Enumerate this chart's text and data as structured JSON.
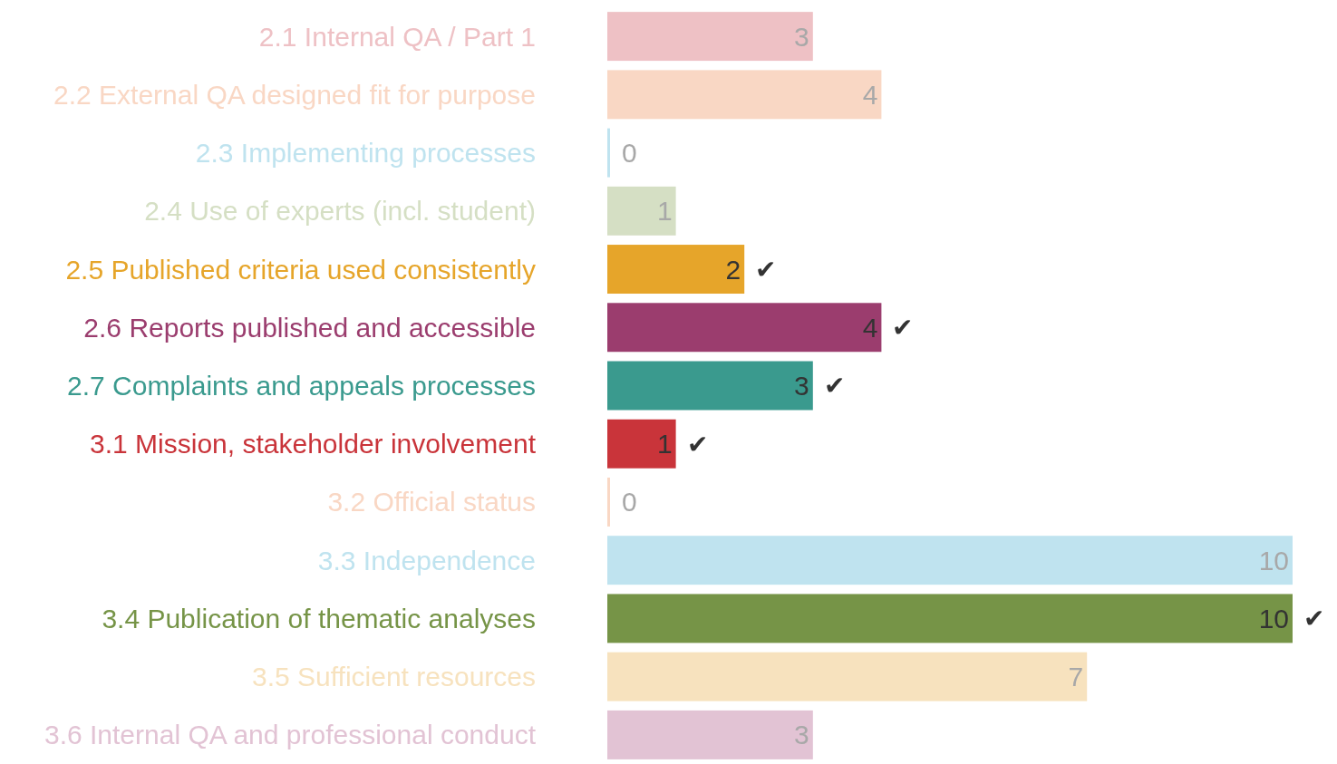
{
  "chart_data": {
    "type": "bar",
    "orientation": "horizontal",
    "data_labels": true,
    "categories": [
      "2.1 Internal QA / Part 1",
      "2.2 External QA designed fit for purpose",
      "2.3 Implementing processes",
      "2.4 Use of experts (incl. student)",
      "2.5 Published criteria used consistently",
      "2.6 Reports published and accessible",
      "2.7 Complaints and appeals processes",
      "3.1 Mission, stakeholder involvement",
      "3.2 Official status",
      "3.3 Independence",
      "3.4 Publication of thematic analyses",
      "3.5 Sufficient resources",
      "3.6 Internal QA and professional conduct"
    ],
    "values": [
      3,
      4,
      0,
      1,
      2,
      4,
      3,
      1,
      0,
      10,
      10,
      7,
      3
    ],
    "colors": [
      "#eec1c5",
      "#f9d7c4",
      "#bfe3ef",
      "#d5dfc4",
      "#e6a52a",
      "#9b3d6e",
      "#3a9a8e",
      "#c9343a",
      "#f9d7c4",
      "#bfe3ef",
      "#769447",
      "#f7e2be",
      "#e2c3d4"
    ],
    "annotations": [
      {
        "text": "✔",
        "x": 2,
        "y": "2.5 Published criteria used consistently"
      },
      {
        "text": "✔",
        "x": 4,
        "y": "2.6 Reports published and accessible"
      },
      {
        "text": "✔",
        "x": 3,
        "y": "2.7 Complaints and appeals processes"
      },
      {
        "text": "✔",
        "x": 1,
        "y": "3.1 Mission, stakeholder involvement"
      },
      {
        "text": "✔",
        "x": 10,
        "y": "3.4 Publication of thematic analyses"
      }
    ]
  }
}
